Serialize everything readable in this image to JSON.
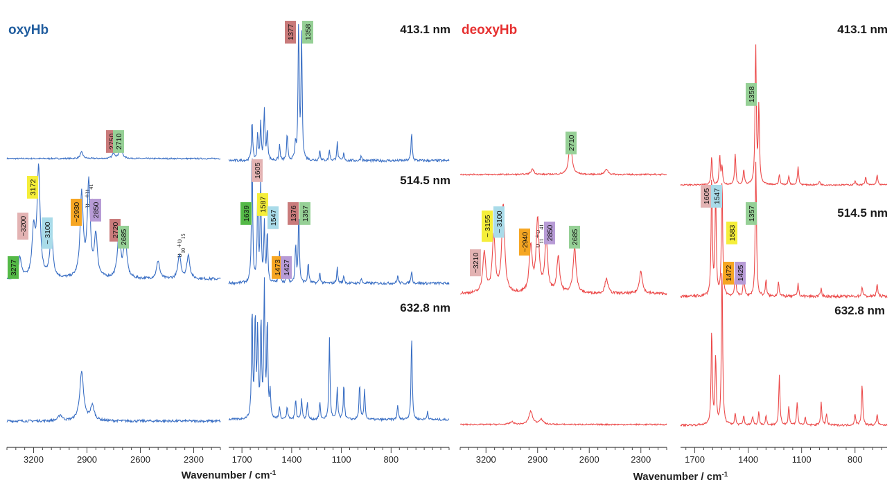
{
  "colors": {
    "oxy": "#3a6fc4",
    "deoxy": "#ec4b4b",
    "oxy_title": "#1f5c9e",
    "deoxy_title": "#e63030"
  },
  "panels": {
    "oxy": {
      "title": "oxyHb",
      "xlabel": "Wavenumber / cm",
      "xlabel_sup": "-1"
    },
    "deoxy": {
      "title": "deoxyHb",
      "xlabel": "Wavenumber / cm",
      "xlabel_sup": "-1"
    }
  },
  "wavelengths": [
    "413.1 nm",
    "514.5 nm",
    "632.8 nm"
  ],
  "mode_labels": {
    "v11_v41": {
      "base": "υ",
      "s1": "11",
      "plus": "+υ",
      "s2": "41"
    },
    "v10_v15": {
      "base": "υ",
      "s1": "10",
      "plus": "+υ",
      "s2": "15"
    }
  },
  "chart_data": [
    {
      "type": "line",
      "name": "oxyHb high-frequency",
      "xlabel": "Wavenumber / cm-1",
      "xlim": [
        3350,
        2150
      ],
      "x_ticks": [
        3200,
        2900,
        2600,
        2300
      ],
      "series": [
        {
          "name": "413.1 nm",
          "peaks": [
            [
              2930,
              0.25
            ],
            [
              2710,
              0.5
            ],
            [
              2750,
              0.2
            ]
          ]
        },
        {
          "name": "514.5 nm",
          "peaks": [
            [
              3277,
              0.4
            ],
            [
              3200,
              0.9
            ],
            [
              3172,
              2.1
            ],
            [
              3100,
              0.9
            ],
            [
              2930,
              1.6
            ],
            [
              2890,
              1.8
            ],
            [
              2850,
              0.8
            ],
            [
              2720,
              0.9
            ],
            [
              2685,
              0.8
            ],
            [
              2500,
              0.35
            ],
            [
              2380,
              0.45
            ],
            [
              2330,
              0.45
            ]
          ]
        },
        {
          "name": "632.8 nm",
          "peaks": [
            [
              3050,
              0.12
            ],
            [
              2930,
              1.0
            ],
            [
              2870,
              0.3
            ]
          ]
        }
      ],
      "band_labels": [
        {
          "text": "2750",
          "color": "#c97b7b",
          "trace": 0
        },
        {
          "text": "2710",
          "color": "#96d096",
          "trace": 0
        },
        {
          "text": "3277",
          "color": "#54b947",
          "trace": 1
        },
        {
          "text": "~3200",
          "color": "#e3b3b3",
          "trace": 1
        },
        {
          "text": "3172",
          "color": "#f5ee3a",
          "trace": 1
        },
        {
          "text": "~ 3100",
          "color": "#a9dbe9",
          "trace": 1
        },
        {
          "text": "~2930",
          "color": "#f6a623",
          "trace": 1
        },
        {
          "text": "2850",
          "color": "#b79bd6",
          "trace": 1
        },
        {
          "text": "2720",
          "color": "#c97b7b",
          "trace": 1
        },
        {
          "text": "2685",
          "color": "#96d096",
          "trace": 1
        }
      ]
    },
    {
      "type": "line",
      "name": "oxyHb low-frequency",
      "xlabel": "Wavenumber / cm-1",
      "xlim": [
        1780,
        450
      ],
      "x_ticks": [
        1700,
        1400,
        1100,
        800
      ],
      "series": [
        {
          "name": "413.1 nm",
          "peaks": [
            [
              1639,
              0.8
            ],
            [
              1605,
              0.5
            ],
            [
              1587,
              0.7
            ],
            [
              1565,
              1.0
            ],
            [
              1547,
              0.6
            ],
            [
              1473,
              0.3
            ],
            [
              1427,
              0.5
            ],
            [
              1377,
              0.3
            ],
            [
              1358,
              2.6
            ],
            [
              1340,
              2.4
            ],
            [
              1230,
              0.2
            ],
            [
              1172,
              0.2
            ],
            [
              1125,
              0.35
            ],
            [
              1085,
              0.15
            ],
            [
              980,
              0.1
            ],
            [
              676,
              0.55
            ]
          ]
        },
        {
          "name": "514.5 nm",
          "peaks": [
            [
              1639,
              2.7
            ],
            [
              1605,
              1.6
            ],
            [
              1587,
              1.9
            ],
            [
              1565,
              1.1
            ],
            [
              1547,
              1.0
            ],
            [
              1473,
              0.6
            ],
            [
              1427,
              0.3
            ],
            [
              1376,
              0.75
            ],
            [
              1357,
              1.35
            ],
            [
              1300,
              0.4
            ],
            [
              1230,
              0.2
            ],
            [
              1125,
              0.3
            ],
            [
              1085,
              0.15
            ],
            [
              980,
              0.1
            ],
            [
              760,
              0.15
            ],
            [
              676,
              0.25
            ]
          ]
        },
        {
          "name": "632.8 nm",
          "peaks": [
            [
              1639,
              2.6
            ],
            [
              1620,
              2.4
            ],
            [
              1605,
              2.0
            ],
            [
              1585,
              2.3
            ],
            [
              1565,
              3.1
            ],
            [
              1547,
              2.3
            ],
            [
              1530,
              0.6
            ],
            [
              1473,
              0.3
            ],
            [
              1427,
              0.3
            ],
            [
              1376,
              0.5
            ],
            [
              1340,
              0.5
            ],
            [
              1305,
              0.4
            ],
            [
              1230,
              0.4
            ],
            [
              1172,
              1.9
            ],
            [
              1125,
              0.75
            ],
            [
              1085,
              0.85
            ],
            [
              990,
              0.85
            ],
            [
              960,
              0.7
            ],
            [
              760,
              0.35
            ],
            [
              676,
              2.0
            ],
            [
              580,
              0.2
            ]
          ]
        }
      ],
      "band_labels": [
        {
          "text": "1377",
          "color": "#c97b7b",
          "trace": 0
        },
        {
          "text": "1358",
          "color": "#96d096",
          "trace": 0
        },
        {
          "text": "1605",
          "color": "#e3b3b3",
          "trace": 1
        },
        {
          "text": "1639",
          "color": "#54b947",
          "trace": 1
        },
        {
          "text": "1587",
          "color": "#f5ee3a",
          "trace": 1
        },
        {
          "text": "1547",
          "color": "#a9dbe9",
          "trace": 1
        },
        {
          "text": "1376",
          "color": "#c97b7b",
          "trace": 1
        },
        {
          "text": "1357",
          "color": "#96d096",
          "trace": 1
        },
        {
          "text": "1473",
          "color": "#f6a623",
          "trace": 1
        },
        {
          "text": "1427",
          "color": "#b79bd6",
          "trace": 1
        }
      ]
    },
    {
      "type": "line",
      "name": "deoxyHb high-frequency",
      "xlabel": "Wavenumber / cm-1",
      "xlim": [
        3350,
        2150
      ],
      "x_ticks": [
        3200,
        2900,
        2600,
        2300
      ],
      "series": [
        {
          "name": "413.1 nm",
          "peaks": [
            [
              2930,
              0.2
            ],
            [
              2710,
              1.3
            ],
            [
              2500,
              0.2
            ]
          ]
        },
        {
          "name": "514.5 nm",
          "peaks": [
            [
              3210,
              0.8
            ],
            [
              3155,
              1.1
            ],
            [
              3100,
              1.7
            ],
            [
              2940,
              0.9
            ],
            [
              2900,
              1.4
            ],
            [
              2850,
              1.0
            ],
            [
              2780,
              0.7
            ],
            [
              2685,
              0.9
            ],
            [
              2500,
              0.3
            ],
            [
              2300,
              0.45
            ]
          ]
        },
        {
          "name": "632.8 nm",
          "peaks": [
            [
              3050,
              0.1
            ],
            [
              2940,
              0.5
            ],
            [
              2880,
              0.2
            ]
          ]
        }
      ],
      "band_labels": [
        {
          "text": "2710",
          "color": "#96d096",
          "trace": 0
        },
        {
          "text": "~3210",
          "color": "#e3b3b3",
          "trace": 1
        },
        {
          "text": "~ 3155",
          "color": "#f5ee3a",
          "trace": 1
        },
        {
          "text": "~ 3100",
          "color": "#a9dbe9",
          "trace": 1
        },
        {
          "text": "~2940",
          "color": "#f6a623",
          "trace": 1
        },
        {
          "text": "2850",
          "color": "#b79bd6",
          "trace": 1
        },
        {
          "text": "2685",
          "color": "#96d096",
          "trace": 1
        }
      ]
    },
    {
      "type": "line",
      "name": "deoxyHb low-frequency",
      "xlabel": "Wavenumber / cm-1",
      "xlim": [
        1780,
        620
      ],
      "x_ticks": [
        1700,
        1400,
        1100,
        800
      ],
      "series": [
        {
          "name": "413.1 nm",
          "peaks": [
            [
              1605,
              1.1
            ],
            [
              1560,
              1.1
            ],
            [
              1547,
              0.7
            ],
            [
              1473,
              1.2
            ],
            [
              1425,
              0.6
            ],
            [
              1358,
              5.3
            ],
            [
              1340,
              3.0
            ],
            [
              1225,
              0.4
            ],
            [
              1172,
              0.35
            ],
            [
              1120,
              0.7
            ],
            [
              1000,
              0.15
            ],
            [
              800,
              0.15
            ],
            [
              740,
              0.3
            ],
            [
              676,
              0.4
            ]
          ]
        },
        {
          "name": "514.5 nm",
          "peaks": [
            [
              1605,
              2.3
            ],
            [
              1583,
              2.0
            ],
            [
              1547,
              2.3
            ],
            [
              1472,
              0.5
            ],
            [
              1425,
              0.45
            ],
            [
              1357,
              2.6
            ],
            [
              1300,
              0.3
            ],
            [
              1230,
              0.3
            ],
            [
              1120,
              0.25
            ],
            [
              990,
              0.15
            ],
            [
              760,
              0.2
            ],
            [
              676,
              0.25
            ]
          ]
        },
        {
          "name": "632.8 nm",
          "peaks": [
            [
              1605,
              2.5
            ],
            [
              1583,
              1.8
            ],
            [
              1547,
              4.2
            ],
            [
              1473,
              0.3
            ],
            [
              1425,
              0.25
            ],
            [
              1375,
              0.25
            ],
            [
              1340,
              0.35
            ],
            [
              1300,
              0.25
            ],
            [
              1225,
              1.3
            ],
            [
              1172,
              0.5
            ],
            [
              1125,
              0.6
            ],
            [
              1080,
              0.2
            ],
            [
              990,
              0.6
            ],
            [
              960,
              0.3
            ],
            [
              800,
              0.3
            ],
            [
              760,
              1.1
            ],
            [
              676,
              0.3
            ]
          ]
        }
      ],
      "band_labels": [
        {
          "text": "1358",
          "color": "#96d096",
          "trace": 0
        },
        {
          "text": "1605",
          "color": "#e3b3b3",
          "trace": 1
        },
        {
          "text": "1547",
          "color": "#a9dbe9",
          "trace": 1
        },
        {
          "text": "1357",
          "color": "#96d096",
          "trace": 1
        },
        {
          "text": "1583",
          "color": "#f5ee3a",
          "trace": 1
        },
        {
          "text": "1472",
          "color": "#f6a623",
          "trace": 1
        },
        {
          "text": "1425",
          "color": "#b79bd6",
          "trace": 1
        }
      ]
    }
  ]
}
